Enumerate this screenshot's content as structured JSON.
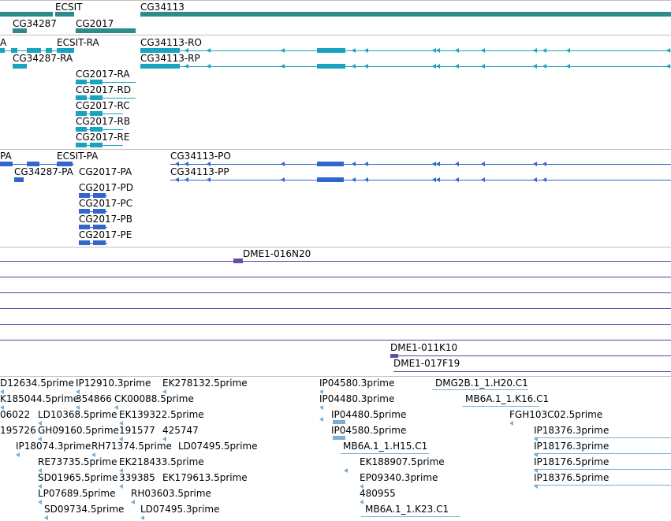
{
  "colors": {
    "gene": "#2e8b8b",
    "mrna": "#1aa3bf",
    "protein": "#3366cc",
    "clone": "#6a4ca8",
    "est": "#7aaed6",
    "separator": "#bfbfbf"
  },
  "tracks": {
    "genes": [
      {
        "label": "ECSIT"
      },
      {
        "label": "CG34287"
      },
      {
        "label": "CG2017"
      },
      {
        "label": "CG34113"
      }
    ],
    "transcripts": [
      {
        "label": "A"
      },
      {
        "label": "ECSIT-RA"
      },
      {
        "label": "CG34287-RA"
      },
      {
        "label": "CG34113-RO"
      },
      {
        "label": "CG34113-RP"
      },
      {
        "label": "CG2017-RA"
      },
      {
        "label": "CG2017-RD"
      },
      {
        "label": "CG2017-RC"
      },
      {
        "label": "CG2017-RB"
      },
      {
        "label": "CG2017-RE"
      }
    ],
    "proteins": [
      {
        "label": "PA"
      },
      {
        "label": "ECSIT-PA"
      },
      {
        "label": "CG34287-PA"
      },
      {
        "label": "CG2017-PA"
      },
      {
        "label": "CG34113-PO"
      },
      {
        "label": "CG34113-PP"
      },
      {
        "label": "CG2017-PD"
      },
      {
        "label": "CG2017-PC"
      },
      {
        "label": "CG2017-PB"
      },
      {
        "label": "CG2017-PE"
      }
    ],
    "clones": [
      {
        "label": "DME1-016N20"
      },
      {
        "label": "DME1-011K10"
      },
      {
        "label": "DME1-017F19"
      }
    ],
    "ests": [
      {
        "label": "D12634.5prime"
      },
      {
        "label": "IP12910.3prime"
      },
      {
        "label": "EK278132.5prime"
      },
      {
        "label": "IP04580.3prime"
      },
      {
        "label": "DMG2B.1_1.H20.C1"
      },
      {
        "label": "K185044.5prime"
      },
      {
        "label": "354866"
      },
      {
        "label": "CK00088.5prime"
      },
      {
        "label": "IP04480.3prime"
      },
      {
        "label": "MB6A.1_1.K16.C1"
      },
      {
        "label": "06022"
      },
      {
        "label": "LD10368.5prime"
      },
      {
        "label": "EK139322.5prime"
      },
      {
        "label": "IP04480.5prime"
      },
      {
        "label": "FGH103C02.5prime"
      },
      {
        "label": "195726"
      },
      {
        "label": "GH09160.5prime"
      },
      {
        "label": "191577"
      },
      {
        "label": "425747"
      },
      {
        "label": "IP04580.5prime"
      },
      {
        "label": "IP18376.3prime"
      },
      {
        "label": "IP18074.3prime"
      },
      {
        "label": "RH71374.5prime"
      },
      {
        "label": "LD07495.5prime"
      },
      {
        "label": "MB6A.1_1.H15.C1"
      },
      {
        "label": "IP18176.3prime"
      },
      {
        "label": "RE73735.5prime"
      },
      {
        "label": "EK218433.5prime"
      },
      {
        "label": "EK188907.5prime"
      },
      {
        "label": "IP18176.5prime"
      },
      {
        "label": "SD01965.5prime"
      },
      {
        "label": "339385"
      },
      {
        "label": "EK179613.5prime"
      },
      {
        "label": "EP09340.3prime"
      },
      {
        "label": "IP18376.5prime"
      },
      {
        "label": "LP07689.5prime"
      },
      {
        "label": "RH03603.5prime"
      },
      {
        "label": "480955"
      },
      {
        "label": "SD09734.5prime"
      },
      {
        "label": "LD07495.3prime"
      },
      {
        "label": "MB6A.1_1.K23.C1"
      }
    ]
  }
}
